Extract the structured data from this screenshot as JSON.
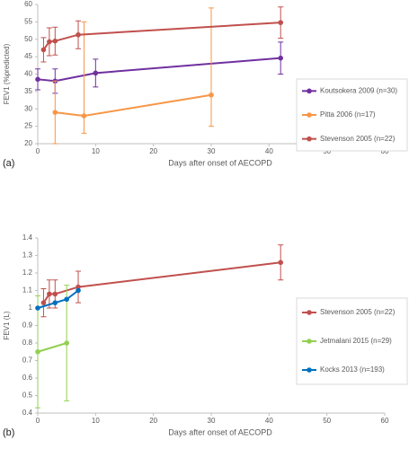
{
  "chart_data": [
    {
      "type": "line",
      "panel_label": "(a)",
      "x_label": "Days after onset of AECOPD",
      "y_label": "FEV1 (%predicted)",
      "xlim": [
        0,
        60
      ],
      "xticks": [
        0,
        10,
        20,
        30,
        40,
        50,
        60
      ],
      "ylim": [
        20,
        60
      ],
      "yticks": [
        20,
        25,
        30,
        35,
        40,
        45,
        50,
        55,
        60
      ],
      "grid": false,
      "legend": "right",
      "series": [
        {
          "name": "Koutsokera 2009 (n=30)",
          "color": "#7030a0",
          "x": [
            0,
            3,
            10,
            42
          ],
          "values": [
            38.5,
            38,
            40.3,
            44.6
          ],
          "errors_minus": [
            3,
            3.5,
            4,
            4.6
          ],
          "errors_plus": [
            3,
            3.5,
            4,
            4.6
          ]
        },
        {
          "name": "Pitta 2006 (n=17)",
          "color": "#f79646",
          "x": [
            3,
            8,
            30
          ],
          "values": [
            29,
            28,
            34
          ],
          "errors_minus": [
            9,
            5,
            9
          ],
          "errors_plus": [
            9,
            27,
            25
          ]
        },
        {
          "name": "Stevenson 2005 (n=22)",
          "color": "#c0504d",
          "x": [
            1,
            2,
            3,
            7,
            42
          ],
          "values": [
            47,
            49.3,
            49.5,
            51.3,
            54.8
          ],
          "errors_minus": [
            3.5,
            4,
            4,
            4,
            4.5
          ],
          "errors_plus": [
            3.5,
            4,
            4,
            4,
            4.5
          ]
        }
      ]
    },
    {
      "type": "line",
      "panel_label": "(b)",
      "x_label": "Days after onset of AECOPD",
      "y_label": "FEV1 (L)",
      "xlim": [
        0,
        60
      ],
      "xticks": [
        0,
        10,
        20,
        30,
        40,
        50,
        60
      ],
      "ylim": [
        0.4,
        1.4
      ],
      "yticks": [
        0.4,
        0.5,
        0.6,
        0.7,
        0.8,
        0.9,
        1,
        1.1,
        1.2,
        1.3,
        1.4
      ],
      "grid": false,
      "legend": "right",
      "series": [
        {
          "name": "Stevenson 2005 (n=22)",
          "color": "#c0504d",
          "x": [
            1,
            2,
            3,
            7,
            42
          ],
          "values": [
            1.03,
            1.08,
            1.08,
            1.12,
            1.26
          ],
          "errors_minus": [
            0.08,
            0.08,
            0.08,
            0.09,
            0.1
          ],
          "errors_plus": [
            0.08,
            0.08,
            0.08,
            0.09,
            0.1
          ]
        },
        {
          "name": "Jetmalani 2015 (n=29)",
          "color": "#92d050",
          "x": [
            0,
            5
          ],
          "values": [
            0.75,
            0.8
          ],
          "errors_minus": [
            0.32,
            0.33
          ],
          "errors_plus": [
            0.32,
            0.33
          ]
        },
        {
          "name": "Kocks 2013 (n=193)",
          "color": "#0070c0",
          "x": [
            0,
            3,
            5,
            7
          ],
          "values": [
            1,
            1.03,
            1.05,
            1.1
          ]
        }
      ]
    }
  ]
}
